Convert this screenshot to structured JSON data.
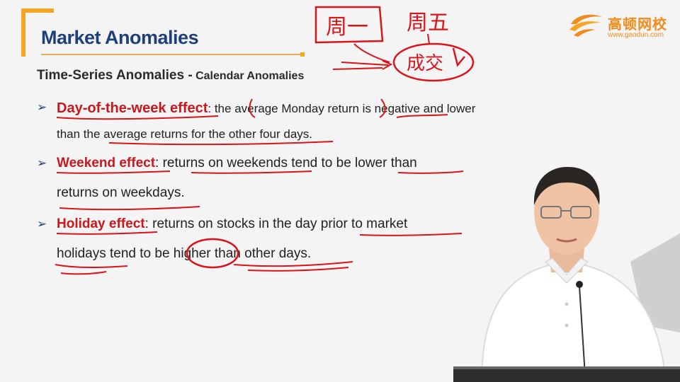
{
  "slide": {
    "title": "Market Anomalies",
    "subheading_main": "Time-Series Anomalies -",
    "subheading_sub": " Calendar Anomalies",
    "bullets": [
      {
        "term": "Day-of-the-week effect",
        "line1_rest": ": the average Monday return is negative and lower",
        "line2": "than the average returns for the other four days."
      },
      {
        "term": "Weekend effect",
        "line1_rest": ": returns on weekends tend to be lower than",
        "line2": "returns on weekdays."
      },
      {
        "term": "Holiday effect",
        "line1_rest": ": returns on stocks in the day prior to market",
        "line2": "holidays tend to be higher than other days."
      }
    ]
  },
  "logo": {
    "name": "高顿网校",
    "url": "www.gaodun.com"
  },
  "annotations": {
    "note1": "周一",
    "note2": "周五",
    "note3": "成交"
  },
  "colors": {
    "title": "#1f3f7a",
    "term": "#c9171e",
    "accent": "#f5a623",
    "logo": "#f08b1c",
    "ink": "#d9141b"
  }
}
